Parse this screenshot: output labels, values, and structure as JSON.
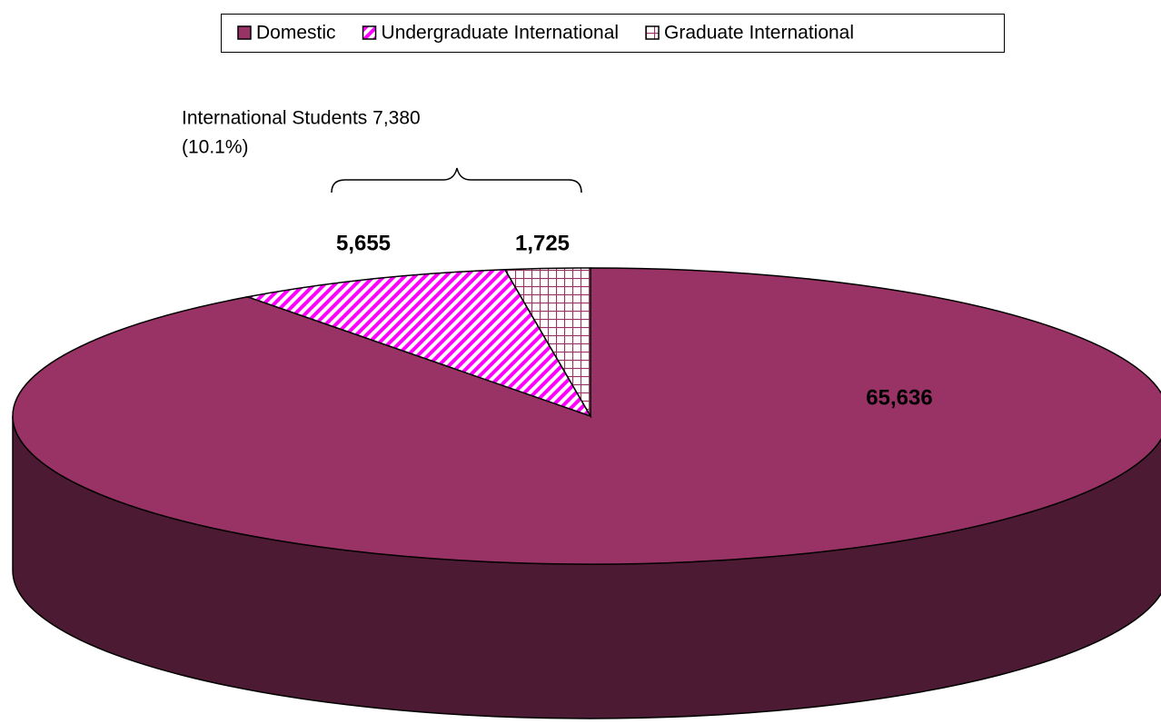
{
  "chart_data": {
    "type": "pie3d",
    "annotation": [
      "International Students 7,380",
      "(10.1%)"
    ],
    "categories": [
      "Domestic",
      "Undergraduate International",
      "Graduate International"
    ],
    "values": [
      65636,
      5655,
      1725
    ],
    "value_labels": [
      "65,636",
      "5,655",
      "1,725"
    ],
    "colors": [
      "#993366",
      "#ff00ff",
      "#993366"
    ],
    "patterns": [
      "solid",
      "diagonal",
      "grid"
    ],
    "legend": "top"
  }
}
